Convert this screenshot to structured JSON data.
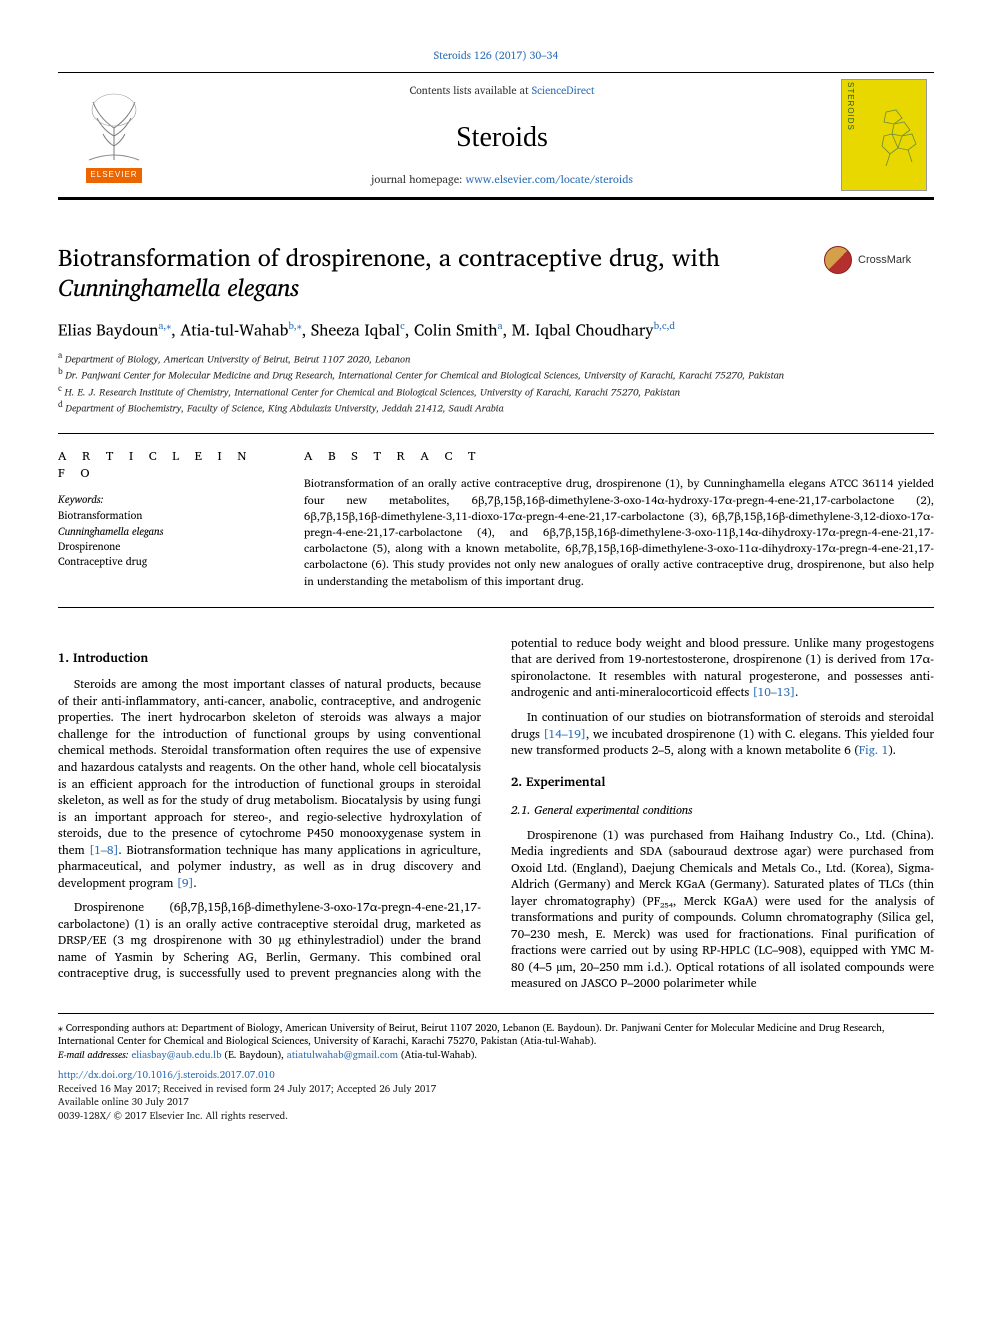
{
  "typography": {
    "body_font": "Charis SIL / Times New Roman",
    "title_fontsize_pt": 18,
    "body_fontsize_pt": 9,
    "abstract_fontsize_pt": 8.5,
    "link_color": "#2c6fb7",
    "text_color": "#000000",
    "background_color": "#ffffff",
    "rule_color": "#000000"
  },
  "masthead": {
    "running_head": "Steroids 126 (2017) 30–34",
    "contents_prefix": "Contents lists available at ",
    "contents_link": "ScienceDirect",
    "journal": "Steroids",
    "homepage_prefix": "journal homepage: ",
    "homepage_link": "www.elsevier.com/locate/steroids",
    "publisher_label": "ELSEVIER",
    "cover": {
      "bg_color": "#e8d800",
      "spine_text": "STEROIDS",
      "spine_color": "#2a5a2a"
    }
  },
  "crossmark": {
    "label": "CrossMark"
  },
  "article": {
    "title_plain": "Biotransformation of drospirenone, a contraceptive drug, with ",
    "title_italic": "Cunninghamella elegans",
    "authors_line_parts": [
      {
        "name": "Elias Baydoun",
        "aff": "a,",
        "star": true
      },
      {
        "name": ", Atia-tul-Wahab",
        "aff": "b,",
        "star": true
      },
      {
        "name": ", Sheeza Iqbal",
        "aff": "c",
        "star": false
      },
      {
        "name": ", Colin Smith",
        "aff": "a",
        "star": false
      },
      {
        "name": ", M. Iqbal Choudhary",
        "aff": "b,c,d",
        "star": false
      }
    ],
    "affiliations": [
      {
        "mark": "a",
        "text": "Department of Biology, American University of Beirut, Beirut 1107 2020, Lebanon"
      },
      {
        "mark": "b",
        "text": "Dr. Panjwani Center for Molecular Medicine and Drug Research, International Center for Chemical and Biological Sciences, University of Karachi, Karachi 75270, Pakistan"
      },
      {
        "mark": "c",
        "text": "H. E. J. Research Institute of Chemistry, International Center for Chemical and Biological Sciences, University of Karachi, Karachi 75270, Pakistan"
      },
      {
        "mark": "d",
        "text": "Department of Biochemistry, Faculty of Science, King Abdulaziz University, Jeddah 21412, Saudi Arabia"
      }
    ]
  },
  "artinfo": {
    "head": "A R T I C L E  I N F O",
    "kw_head": "Keywords:",
    "keywords": [
      "Biotransformation",
      "Cunninghamella elegans",
      "Drospirenone",
      "Contraceptive drug"
    ]
  },
  "abstract": {
    "head": "A B S T R A C T",
    "text": "Biotransformation of an orally active contraceptive drug, drospirenone (1), by Cunninghamella elegans ATCC 36114 yielded four new metabolites, 6β,7β,15β,16β-dimethylene-3-oxo-14α-hydroxy-17α-pregn-4-ene-21,17-carbolactone (2), 6β,7β,15β,16β-dimethylene-3,11-dioxo-17α-pregn-4-ene-21,17-carbolactone (3), 6β,7β,15β,16β-dimethylene-3,12-dioxo-17α-pregn-4-ene-21,17-carbolactone (4), and 6β,7β,15β,16β-dimethylene-3-oxo-11β,14α-dihydroxy-17α-pregn-4-ene-21,17-carbolactone (5), along with a known metabolite, 6β,7β,15β,16β-dimethylene-3-oxo-11α-dihydroxy-17α-pregn-4-ene-21,17-carbolactone (6). This study provides not only new analogues of orally active contraceptive drug, drospirenone, but also help in understanding the metabolism of this important drug."
  },
  "body": {
    "h_intro": "1. Introduction",
    "p1": "Steroids are among the most important classes of natural products, because of their anti-inflammatory, anti-cancer, anabolic, contraceptive, and androgenic properties. The inert hydrocarbon skeleton of steroids was always a major challenge for the introduction of functional groups by using conventional chemical methods. Steroidal transformation often requires the use of expensive and hazardous catalysts and reagents. On the other hand, whole cell biocatalysis is an efficient approach for the introduction of functional groups in steroidal skeleton, as well as for the study of drug metabolism. Biocatalysis by using fungi is an important approach for stereo-, and regio-selective hydroxylation of steroids, due to the presence of cytochrome P450 monooxygenase system in them ",
    "ref1": "[1–8]",
    "p1b": ". Biotransformation technique has many applications in agriculture, pharmaceutical, and polymer industry, as well as in drug discovery and development program ",
    "ref2": "[9]",
    "p1c": ".",
    "p2": "Drospirenone (6β,7β,15β,16β-dimethylene-3-oxo-17α-pregn-4-ene-21,17-carbolactone) (1) is an orally active contraceptive steroidal drug, marketed as DRSP/EE (3 mg drospirenone with 30 µg ethinylestradiol) under the brand name of Yasmin by Schering AG, Berlin, Germany. This combined oral contraceptive drug, is successfully used to prevent pregnancies along with the potential to reduce body weight and blood pressure. Unlike many progestogens that are derived from 19-nortestosterone, drospirenone (1) is derived from 17α-spironolactone. It resembles with natural progesterone, and possesses anti-androgenic and anti-mineralocorticoid effects ",
    "ref3": "[10–13]",
    "p2b": ".",
    "p3a": "In continuation of our studies on biotransformation of steroids and steroidal drugs ",
    "ref4": "[14–19]",
    "p3b": ", we incubated drospirenone (1) with C. elegans. This yielded four new transformed products 2–5, along with a known metabolite 6 (",
    "figref": "Fig. 1",
    "p3c": ").",
    "h_exp": "2. Experimental",
    "h_gen": "2.1. General experimental conditions",
    "p4": "Drospirenone (1) was purchased from Haihang Industry Co., Ltd. (China). Media ingredients and SDA (sabouraud dextrose agar) were purchased from Oxoid Ltd. (England), Daejung Chemicals and Metals Co., Ltd. (Korea), Sigma-Aldrich (Germany) and Merck KGaA (Germany). Saturated plates of TLCs (thin layer chromatography) (PF₂₅₄, Merck KGaA) were used for the analysis of transformations and purity of compounds. Column chromatography (Silica gel, 70–230 mesh, E. Merck) was used for fractionations. Final purification of fractions were carried out by using RP-HPLC (LC–908), equipped with YMC M-80 (4–5 µm, 20–250 mm i.d.). Optical rotations of all isolated compounds were measured on JASCO P–2000 polarimeter while"
  },
  "footer": {
    "corr": "⁎ Corresponding authors at: Department of Biology, American University of Beirut, Beirut 1107 2020, Lebanon (E. Baydoun). Dr. Panjwani Center for Molecular Medicine and Drug Research, International Center for Chemical and Biological Sciences, University of Karachi, Karachi 75270, Pakistan (Atia-tul-Wahab).",
    "email_label": "E-mail addresses: ",
    "email1": "eliasbay@aub.edu.lb",
    "email1_who": " (E. Baydoun), ",
    "email2": "atiatulwahab@gmail.com",
    "email2_who": " (Atia-tul-Wahab).",
    "doi": "http://dx.doi.org/10.1016/j.steroids.2017.07.010",
    "history": "Received 16 May 2017; Received in revised form 24 July 2017; Accepted 26 July 2017",
    "online": "Available online 30 July 2017",
    "copyright": "0039-128X/ © 2017 Elsevier Inc. All rights reserved."
  }
}
